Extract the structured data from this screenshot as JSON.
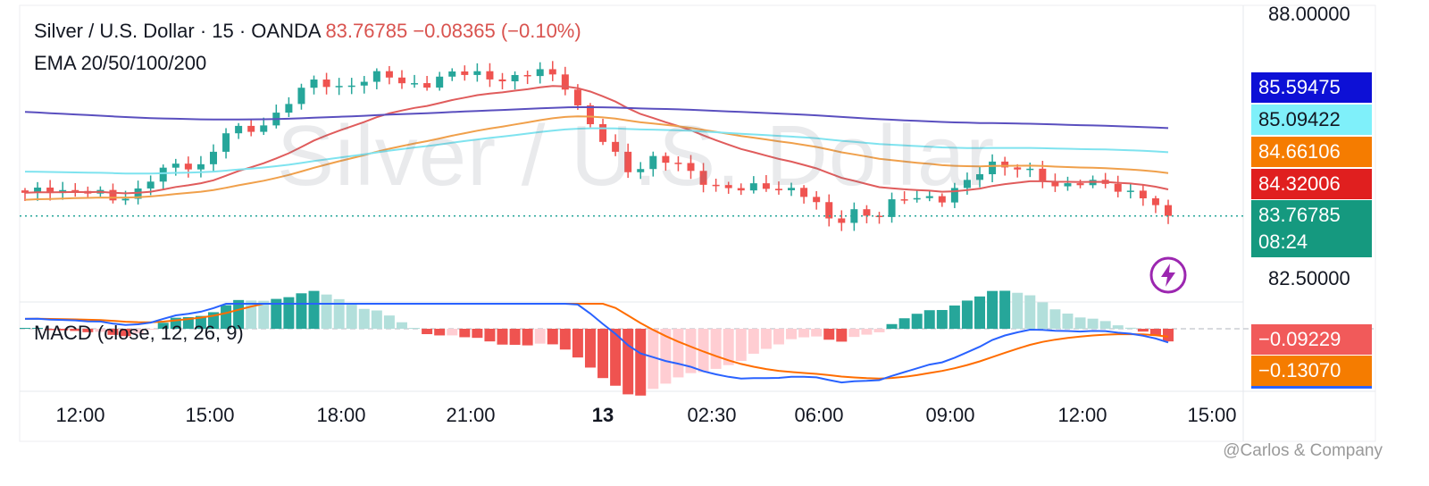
{
  "header": {
    "symbol": "Silver / U.S. Dollar · 15 · OANDA",
    "price": "83.76785",
    "change": "−0.08365 (−0.10%)",
    "ema_legend": "EMA 20/50/100/200",
    "macd_legend": "MACD (close, 12, 26, 9)"
  },
  "watermark": "Silver / U.S. Dollar",
  "credit": "@Carlos & Company",
  "price_axis": {
    "top_label": "88.00000",
    "bottom_label": "82.50000"
  },
  "badges": {
    "ema200": "85.59475",
    "ema100": "85.09422",
    "ema50": "84.66106",
    "ema20": "84.32006",
    "last_price": "83.76785",
    "countdown": "08:24",
    "macd_hist": "−0.09229",
    "macd_signal": "−0.13070"
  },
  "time_axis": [
    "12:00",
    "15:00",
    "18:00",
    "21:00",
    "13",
    "02:30",
    "06:00",
    "09:00",
    "12:00",
    "15:00"
  ],
  "colors": {
    "up": "#26a69a",
    "down": "#ef5350",
    "ema20": "#e05c5c",
    "ema50": "#f0a04b",
    "ema100": "#7fe3ef",
    "ema200": "#5a4fbf",
    "macd": "#2962ff",
    "signal": "#ff6d00"
  },
  "chart_data": {
    "type": "candlestick",
    "ylim": [
      82.5,
      88.0
    ],
    "x_ticks": [
      "12:00",
      "15:00",
      "18:00",
      "21:00",
      "13",
      "02:30",
      "06:00",
      "09:00",
      "12:00",
      "15:00"
    ],
    "close_path": [
      84.2,
      84.35,
      84.3,
      84.25,
      84.1,
      84.3,
      84.7,
      84.8,
      84.85,
      85.55,
      85.5,
      85.8,
      86.3,
      86.55,
      86.45,
      86.6,
      86.7,
      86.5,
      86.55,
      86.7,
      86.75,
      86.65,
      86.6,
      86.8,
      86.6,
      85.75,
      85.2,
      84.7,
      84.95,
      84.85,
      84.6,
      84.35,
      84.3,
      84.4,
      84.35,
      84.15,
      83.6,
      83.9,
      83.7,
      84.15,
      84.2,
      84.1,
      84.45,
      84.9,
      84.8,
      84.6,
      84.4,
      84.5,
      84.4,
      84.3,
      84.2,
      83.78
    ],
    "series": [
      {
        "name": "EMA 20",
        "last": 84.32006
      },
      {
        "name": "EMA 50",
        "last": 84.66106
      },
      {
        "name": "EMA 100",
        "last": 85.09422
      },
      {
        "name": "EMA 200",
        "last": 85.59475
      }
    ],
    "macd_last": {
      "hist": -0.09229,
      "signal": -0.1307
    }
  }
}
